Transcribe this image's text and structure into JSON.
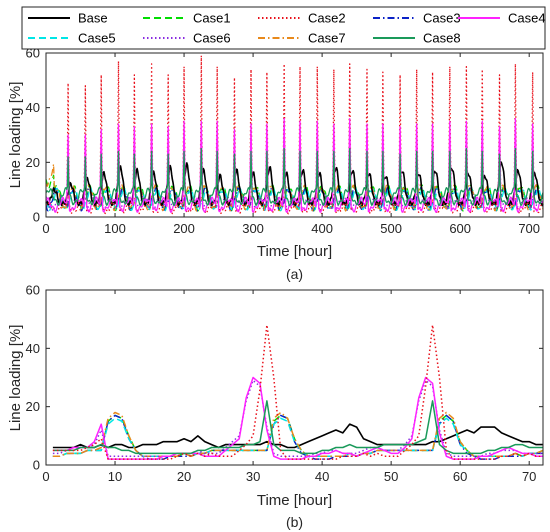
{
  "chart_data": [
    {
      "type": "line",
      "panel_label": "(a)",
      "xlabel": "Time [hour]",
      "ylabel": "Line loading [%]",
      "xlim": [
        0,
        720
      ],
      "ylim": [
        0,
        60
      ],
      "xticks": [
        0,
        100,
        200,
        300,
        400,
        500,
        600,
        700
      ],
      "yticks": [
        0,
        20,
        40,
        60
      ],
      "legend": [
        "Base",
        "Case1",
        "Case2",
        "Case3",
        "Case4",
        "Case5",
        "Case6",
        "Case7",
        "Case8"
      ],
      "legend_position": "top (above panel a)",
      "peak_series": {
        "hours": [
          32,
          57,
          80,
          105,
          128,
          153,
          177,
          200,
          225,
          248,
          273,
          297,
          320,
          345,
          368,
          393,
          417,
          440,
          465,
          488,
          513,
          537,
          560,
          585,
          609,
          632,
          657,
          680,
          705
        ],
        "Case2": [
          49,
          48,
          52,
          57,
          52,
          56,
          52,
          55,
          59,
          55,
          51,
          54,
          53,
          56,
          55,
          55,
          54,
          56,
          54,
          53,
          52,
          54,
          53,
          55,
          55,
          54,
          52,
          56,
          53
        ],
        "Case4": [
          30,
          30,
          32,
          34,
          33,
          34,
          33,
          35,
          35,
          35,
          32,
          34,
          34,
          36,
          35,
          35,
          34,
          36,
          34,
          34,
          33,
          34,
          34,
          35,
          35,
          35,
          33,
          36,
          34
        ],
        "Case8": [
          22,
          22,
          23,
          24,
          23,
          24,
          23,
          24,
          25,
          24,
          23,
          24,
          24,
          25,
          24,
          24,
          24,
          25,
          24,
          24,
          23,
          24,
          24,
          24,
          25,
          24,
          23,
          25,
          24
        ]
      },
      "base_daily_peak": [
        10,
        12,
        14,
        16,
        18,
        17,
        16,
        18,
        19,
        17,
        15,
        17,
        16,
        18,
        16,
        17,
        16,
        18,
        17,
        16,
        15,
        17,
        16,
        17,
        18,
        16,
        15,
        20,
        17,
        16
      ]
    },
    {
      "type": "line",
      "panel_label": "(b)",
      "xlabel": "Time [hour]",
      "ylabel": "Line loading [%]",
      "xlim": [
        0,
        72
      ],
      "ylim": [
        0,
        60
      ],
      "xticks": [
        0,
        10,
        20,
        30,
        40,
        50,
        60,
        70
      ],
      "yticks": [
        0,
        20,
        40,
        60
      ],
      "x": [
        1,
        2,
        3,
        4,
        5,
        6,
        7,
        8,
        9,
        10,
        11,
        12,
        13,
        14,
        15,
        16,
        17,
        18,
        19,
        20,
        21,
        22,
        23,
        24,
        25,
        26,
        27,
        28,
        29,
        30,
        31,
        32,
        33,
        34,
        35,
        36,
        37,
        38,
        39,
        40,
        41,
        42,
        43,
        44,
        45,
        46,
        47,
        48,
        49,
        50,
        51,
        52,
        53,
        54,
        55,
        56,
        57,
        58,
        59,
        60,
        61,
        62,
        63,
        64,
        65,
        66,
        67,
        68,
        69,
        70,
        71,
        72
      ],
      "series": [
        {
          "name": "Base",
          "values": [
            6,
            6,
            6,
            6,
            7,
            6,
            6,
            7,
            6,
            7,
            7,
            6,
            6,
            7,
            7,
            7,
            8,
            8,
            8,
            9,
            8,
            10,
            8,
            7,
            6,
            7,
            7,
            7,
            7,
            7,
            7,
            8,
            7,
            7,
            6,
            6,
            7,
            8,
            9,
            10,
            11,
            12,
            11,
            14,
            13,
            9,
            8,
            7,
            7,
            7,
            7,
            7,
            7,
            7,
            7,
            8,
            8,
            9,
            10,
            11,
            12,
            11,
            13,
            13,
            13,
            11,
            10,
            9,
            8,
            8,
            7,
            7
          ]
        },
        {
          "name": "Case1",
          "values": [
            3,
            3,
            4,
            4,
            4,
            5,
            5,
            5,
            15,
            17,
            16,
            10,
            5,
            3,
            3,
            3,
            3,
            3,
            3,
            4,
            3,
            4,
            4,
            5,
            5,
            5,
            5,
            5,
            5,
            5,
            5,
            5,
            15,
            17,
            16,
            9,
            5,
            3,
            3,
            3,
            3,
            3,
            3,
            4,
            3,
            4,
            4,
            5,
            5,
            5,
            5,
            5,
            5,
            5,
            5,
            5,
            15,
            17,
            15,
            8,
            5,
            3,
            3,
            3,
            3,
            3,
            3,
            4,
            3,
            4,
            4,
            5
          ]
        },
        {
          "name": "Case2",
          "values": [
            5,
            5,
            5,
            5,
            5,
            6,
            7,
            9,
            2,
            2,
            2,
            2,
            2,
            2,
            2,
            2,
            2,
            2,
            3,
            4,
            3,
            4,
            3,
            4,
            3,
            3,
            3,
            5,
            7,
            10,
            26,
            48,
            30,
            5,
            2,
            2,
            2,
            2,
            2,
            2,
            2,
            2,
            3,
            3,
            3,
            4,
            3,
            4,
            3,
            3,
            3,
            5,
            7,
            10,
            27,
            48,
            30,
            5,
            2,
            2,
            2,
            2,
            2,
            2,
            2,
            3,
            3,
            4,
            3,
            4,
            3,
            3
          ]
        },
        {
          "name": "Case3",
          "values": [
            3,
            3,
            4,
            4,
            4,
            5,
            5,
            5,
            15,
            17,
            16,
            9,
            5,
            3,
            2,
            2,
            2,
            3,
            3,
            3,
            3,
            4,
            4,
            5,
            5,
            5,
            5,
            5,
            5,
            5,
            5,
            5,
            14,
            17,
            16,
            8,
            4,
            3,
            2,
            2,
            2,
            3,
            3,
            3,
            3,
            4,
            4,
            5,
            5,
            5,
            5,
            5,
            5,
            5,
            5,
            5,
            14,
            17,
            15,
            7,
            4,
            3,
            2,
            2,
            2,
            3,
            3,
            3,
            3,
            4,
            4,
            4
          ]
        },
        {
          "name": "Case4",
          "values": [
            5,
            5,
            5,
            6,
            6,
            6,
            8,
            14,
            2,
            2,
            2,
            2,
            2,
            2,
            2,
            2,
            3,
            3,
            4,
            4,
            4,
            4,
            3,
            3,
            3,
            5,
            7,
            9,
            23,
            30,
            28,
            12,
            3,
            2,
            2,
            2,
            2,
            3,
            3,
            4,
            4,
            5,
            4,
            4,
            3,
            4,
            5,
            6,
            5,
            4,
            4,
            6,
            9,
            23,
            30,
            28,
            11,
            3,
            2,
            2,
            2,
            2,
            3,
            3,
            4,
            5,
            6,
            5,
            4,
            4,
            3,
            3
          ]
        },
        {
          "name": "Case5",
          "values": [
            3,
            3,
            4,
            4,
            4,
            5,
            5,
            5,
            14,
            16,
            15,
            9,
            5,
            3,
            3,
            3,
            3,
            3,
            3,
            4,
            3,
            4,
            4,
            5,
            5,
            5,
            5,
            5,
            5,
            5,
            5,
            5,
            14,
            16,
            15,
            8,
            5,
            3,
            3,
            3,
            3,
            3,
            3,
            4,
            3,
            4,
            4,
            5,
            5,
            5,
            5,
            5,
            5,
            5,
            5,
            5,
            14,
            16,
            14,
            7,
            5,
            3,
            3,
            3,
            3,
            3,
            3,
            4,
            3,
            4,
            4,
            5
          ]
        },
        {
          "name": "Case6",
          "values": [
            4,
            4,
            5,
            5,
            6,
            6,
            7,
            12,
            3,
            3,
            3,
            3,
            3,
            3,
            3,
            3,
            3,
            3,
            4,
            4,
            4,
            5,
            4,
            4,
            4,
            6,
            8,
            10,
            22,
            29,
            27,
            13,
            4,
            3,
            3,
            3,
            3,
            3,
            4,
            4,
            5,
            5,
            4,
            4,
            4,
            5,
            6,
            6,
            5,
            5,
            5,
            7,
            10,
            22,
            29,
            27,
            12,
            4,
            3,
            3,
            3,
            3,
            3,
            4,
            4,
            5,
            5,
            5,
            4,
            4,
            4,
            4
          ]
        },
        {
          "name": "Case7",
          "values": [
            3,
            3,
            4,
            4,
            4,
            5,
            5,
            6,
            16,
            18,
            17,
            10,
            5,
            3,
            3,
            3,
            3,
            3,
            3,
            4,
            3,
            4,
            4,
            5,
            5,
            5,
            5,
            5,
            5,
            5,
            5,
            5,
            16,
            18,
            16,
            9,
            5,
            3,
            3,
            3,
            3,
            3,
            3,
            4,
            3,
            4,
            4,
            5,
            5,
            5,
            5,
            5,
            5,
            5,
            5,
            5,
            16,
            18,
            16,
            8,
            5,
            3,
            3,
            3,
            3,
            3,
            3,
            4,
            3,
            4,
            4,
            5
          ]
        },
        {
          "name": "Case8",
          "values": [
            5,
            5,
            5,
            5,
            6,
            6,
            6,
            7,
            6,
            6,
            5,
            5,
            4,
            4,
            4,
            4,
            4,
            4,
            4,
            4,
            4,
            5,
            5,
            6,
            6,
            6,
            6,
            6,
            7,
            7,
            8,
            22,
            7,
            5,
            5,
            5,
            4,
            4,
            4,
            5,
            5,
            6,
            6,
            7,
            6,
            6,
            6,
            6,
            7,
            7,
            7,
            7,
            7,
            8,
            9,
            22,
            7,
            5,
            4,
            4,
            4,
            4,
            4,
            5,
            5,
            6,
            6,
            7,
            7,
            6,
            6,
            6
          ]
        }
      ]
    }
  ],
  "series_styles": [
    {
      "name": "Base",
      "color": "#000000",
      "dash": "solid"
    },
    {
      "name": "Case1",
      "color": "#00dd00",
      "dash": "dashed"
    },
    {
      "name": "Case2",
      "color": "#e8111b",
      "dash": "dotted"
    },
    {
      "name": "Case3",
      "color": "#0b22c6",
      "dash": "dashdot"
    },
    {
      "name": "Case4",
      "color": "#ff22ff",
      "dash": "solid"
    },
    {
      "name": "Case5",
      "color": "#00e6e6",
      "dash": "dashed"
    },
    {
      "name": "Case6",
      "color": "#8a2be2",
      "dash": "dotted"
    },
    {
      "name": "Case7",
      "color": "#e8891b",
      "dash": "dashdot"
    },
    {
      "name": "Case8",
      "color": "#1a9a5a",
      "dash": "solid"
    }
  ]
}
